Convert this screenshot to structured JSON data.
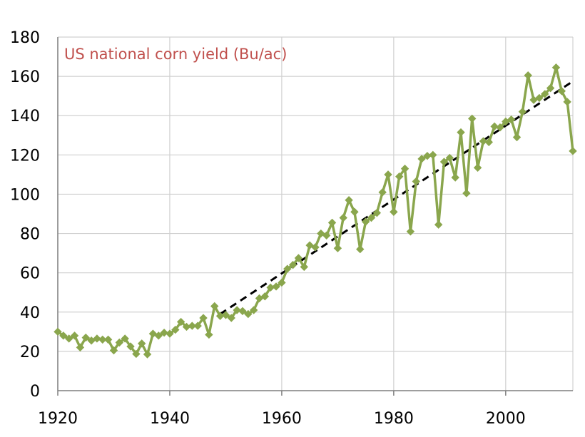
{
  "chart_data": {
    "type": "line",
    "title": "US national corn yield (Bu/ac)",
    "xlabel": "",
    "ylabel": "",
    "xlim": [
      1920,
      2012
    ],
    "ylim": [
      0,
      180
    ],
    "x_ticks": [
      1920,
      1940,
      1960,
      1980,
      2000
    ],
    "y_ticks": [
      0,
      20,
      40,
      60,
      80,
      100,
      120,
      140,
      160,
      180
    ],
    "grid": true,
    "colors": {
      "series": "#8AA64D",
      "trend": "#000000",
      "title": "#C0504D",
      "grid": "#D0D0D0"
    },
    "series": [
      {
        "marker": "diamond",
        "x": [
          1920,
          1921,
          1922,
          1923,
          1924,
          1925,
          1926,
          1927,
          1928,
          1929,
          1930,
          1931,
          1932,
          1933,
          1934,
          1935,
          1936,
          1937,
          1938,
          1939,
          1940,
          1941,
          1942,
          1943,
          1944,
          1945,
          1946,
          1947,
          1948,
          1949,
          1950,
          1951,
          1952,
          1953,
          1954,
          1955,
          1956,
          1957,
          1958,
          1959,
          1960,
          1961,
          1962,
          1963,
          1964,
          1965,
          1966,
          1967,
          1968,
          1969,
          1970,
          1971,
          1972,
          1973,
          1974,
          1975,
          1976,
          1977,
          1978,
          1979,
          1980,
          1981,
          1982,
          1983,
          1984,
          1985,
          1986,
          1987,
          1988,
          1989,
          1990,
          1991,
          1992,
          1993,
          1994,
          1995,
          1996,
          1997,
          1998,
          1999,
          2000,
          2001,
          2002,
          2003,
          2004,
          2005,
          2006,
          2007,
          2008,
          2009,
          2010,
          2011,
          2012
        ],
        "values": [
          30,
          28,
          26.5,
          28,
          22,
          27,
          25.5,
          26.5,
          26,
          26,
          20.5,
          24.5,
          26.5,
          22.5,
          18.7,
          24,
          18.5,
          29,
          28,
          29.5,
          29,
          31,
          35,
          32.5,
          33,
          33,
          37,
          28.5,
          43,
          38,
          38.5,
          37,
          41,
          40.5,
          39,
          41,
          47,
          48,
          52.5,
          53,
          55,
          62,
          64,
          67.5,
          63,
          74,
          73,
          80,
          79,
          85.5,
          72.5,
          88,
          97,
          91,
          72,
          86,
          88,
          90.5,
          101,
          110,
          91,
          109,
          113,
          81,
          106.5,
          118,
          119.5,
          120,
          84.5,
          116.5,
          118.5,
          108.5,
          131.5,
          100.5,
          138.5,
          113.5,
          127,
          126.5,
          134.5,
          134,
          137,
          138,
          129,
          142,
          160.5,
          148,
          149,
          151,
          154,
          164.5,
          152.5,
          147,
          122
        ]
      },
      {
        "style": "dashed",
        "x": [
          1949,
          2012
        ],
        "values": [
          39,
          157.5
        ]
      }
    ]
  }
}
